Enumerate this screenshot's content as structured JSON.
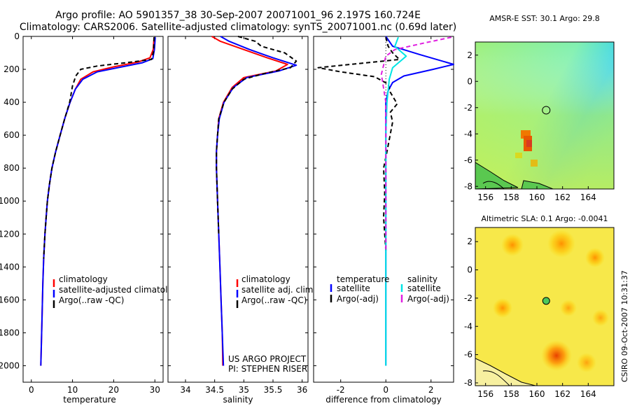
{
  "header": {
    "line1": "Argo profile: AO 5901357_38 30-Sep-2007 20071001_96 2.197S 160.724E",
    "line2": "Climatology: CARS2006. Satellite-adjusted climatology: synTS_20071001.nc (0.69d later)"
  },
  "colors": {
    "climatology": "#ff0000",
    "satellite": "#0000ff",
    "argo": "#000000",
    "sat_diff": "#00e5e5",
    "argo_diff": "#e020e0"
  },
  "chart_data": [
    {
      "type": "line",
      "xlabel": "temperature",
      "xlim": [
        -2,
        32
      ],
      "ylim": [
        2100,
        0
      ],
      "xticks": [
        "0",
        "10",
        "20",
        "30"
      ],
      "yticks": [
        "0",
        "200",
        "400",
        "600",
        "800",
        "1000",
        "1200",
        "1400",
        "1600",
        "1800",
        "2000"
      ],
      "legend": [
        "climatology",
        "satellite-adjusted climatology",
        "Argo(..raw -QC)"
      ],
      "series": [
        {
          "name": "climatology",
          "style": "red",
          "points": [
            [
              29.8,
              5
            ],
            [
              29.6,
              80
            ],
            [
              28.8,
              130
            ],
            [
              26,
              155
            ],
            [
              20,
              185
            ],
            [
              15,
              215
            ],
            [
              12,
              260
            ],
            [
              10.7,
              320
            ],
            [
              9.4,
              400
            ],
            [
              8.1,
              500
            ],
            [
              7.0,
              600
            ],
            [
              5.9,
              700
            ],
            [
              5.0,
              800
            ],
            [
              4.4,
              900
            ],
            [
              3.9,
              1000
            ],
            [
              3.6,
              1100
            ],
            [
              3.3,
              1200
            ],
            [
              3.0,
              1350
            ],
            [
              2.8,
              1500
            ],
            [
              2.6,
              1700
            ],
            [
              2.4,
              1900
            ],
            [
              2.3,
              2000
            ]
          ]
        },
        {
          "name": "satellite-adjusted climatology",
          "style": "blue",
          "points": [
            [
              30.1,
              5
            ],
            [
              29.9,
              80
            ],
            [
              29.5,
              135
            ],
            [
              27,
              160
            ],
            [
              22,
              185
            ],
            [
              16,
              215
            ],
            [
              12.5,
              260
            ],
            [
              10.7,
              320
            ],
            [
              9.4,
              400
            ],
            [
              8.1,
              500
            ],
            [
              7.0,
              600
            ],
            [
              5.9,
              700
            ],
            [
              5.0,
              800
            ],
            [
              4.4,
              900
            ],
            [
              3.9,
              1000
            ],
            [
              3.6,
              1100
            ],
            [
              3.3,
              1200
            ],
            [
              3.0,
              1350
            ],
            [
              2.8,
              1500
            ],
            [
              2.6,
              1700
            ],
            [
              2.4,
              1900
            ],
            [
              2.3,
              2000
            ]
          ]
        },
        {
          "name": "Argo(..raw -QC)",
          "style": "black-dash",
          "points": [
            [
              29.8,
              5
            ],
            [
              29.7,
              90
            ],
            [
              29.2,
              140
            ],
            [
              23,
              160
            ],
            [
              16,
              180
            ],
            [
              12,
              200
            ],
            [
              10.8,
              240
            ],
            [
              10.0,
              300
            ],
            [
              9.3,
              400
            ],
            [
              8.1,
              500
            ],
            [
              7.0,
              600
            ],
            [
              5.9,
              700
            ],
            [
              5.0,
              800
            ],
            [
              4.4,
              900
            ],
            [
              3.9,
              1000
            ],
            [
              3.6,
              1100
            ],
            [
              3.3,
              1200
            ],
            [
              3.0,
              1350
            ]
          ]
        }
      ]
    },
    {
      "type": "line",
      "xlabel": "salinity",
      "xlim": [
        33.7,
        36.1
      ],
      "ylim": [
        2100,
        0
      ],
      "xticks": [
        "34",
        "34.5",
        "35",
        "35.5",
        "36"
      ],
      "legend": [
        "climatology",
        "satellite adj. clim.",
        "Argo(..raw -QC)"
      ],
      "annotation": [
        "US ARGO PROJECT",
        "PI: STEPHEN RISER"
      ],
      "series": [
        {
          "name": "climatology",
          "style": "red",
          "points": [
            [
              34.45,
              0
            ],
            [
              34.6,
              30
            ],
            [
              35.0,
              80
            ],
            [
              35.4,
              130
            ],
            [
              35.75,
              170
            ],
            [
              35.55,
              210
            ],
            [
              35.0,
              250
            ],
            [
              34.8,
              310
            ],
            [
              34.65,
              400
            ],
            [
              34.57,
              500
            ],
            [
              34.55,
              600
            ],
            [
              34.53,
              700
            ],
            [
              34.53,
              800
            ],
            [
              34.54,
              900
            ],
            [
              34.55,
              1000
            ],
            [
              34.57,
              1200
            ],
            [
              34.59,
              1400
            ],
            [
              34.61,
              1600
            ],
            [
              34.63,
              1800
            ],
            [
              34.64,
              2000
            ]
          ]
        },
        {
          "name": "satellite adj. clim.",
          "style": "blue",
          "points": [
            [
              34.6,
              0
            ],
            [
              34.75,
              30
            ],
            [
              35.1,
              80
            ],
            [
              35.5,
              130
            ],
            [
              35.9,
              175
            ],
            [
              35.6,
              210
            ],
            [
              35.05,
              250
            ],
            [
              34.82,
              310
            ],
            [
              34.66,
              400
            ],
            [
              34.58,
              500
            ],
            [
              34.55,
              600
            ],
            [
              34.53,
              700
            ],
            [
              34.53,
              800
            ],
            [
              34.54,
              900
            ],
            [
              34.55,
              1000
            ],
            [
              34.57,
              1200
            ],
            [
              34.59,
              1400
            ],
            [
              34.61,
              1600
            ],
            [
              34.63,
              1800
            ],
            [
              34.65,
              2000
            ]
          ]
        },
        {
          "name": "Argo(..raw -QC)",
          "style": "black-dash",
          "points": [
            [
              34.9,
              0
            ],
            [
              35.2,
              30
            ],
            [
              35.3,
              60
            ],
            [
              35.7,
              100
            ],
            [
              35.9,
              150
            ],
            [
              35.8,
              190
            ],
            [
              35.3,
              230
            ],
            [
              35.0,
              260
            ],
            [
              34.8,
              320
            ],
            [
              34.66,
              400
            ],
            [
              34.57,
              500
            ],
            [
              34.55,
              600
            ],
            [
              34.53,
              700
            ],
            [
              34.53,
              800
            ],
            [
              34.54,
              900
            ],
            [
              34.55,
              1000
            ],
            [
              34.57,
              1200
            ]
          ]
        }
      ]
    },
    {
      "type": "line",
      "xlabel": "difference from climatology",
      "xlim": [
        -3.2,
        3.0
      ],
      "ylim": [
        2100,
        0
      ],
      "xticks": [
        "-2",
        "0",
        "2"
      ],
      "legend_titles": [
        "temperature",
        "salinity"
      ],
      "legend_left": [
        "satellite",
        "Argo(-adj)"
      ],
      "legend_right": [
        "satellite",
        "Argo(-adj)"
      ],
      "series": [
        {
          "name": "temperature satellite",
          "style": "blue",
          "points": [
            [
              0,
              0
            ],
            [
              0.3,
              60
            ],
            [
              1.5,
              110
            ],
            [
              3.0,
              170
            ],
            [
              2.1,
              200
            ],
            [
              0.8,
              240
            ],
            [
              0.3,
              280
            ],
            [
              0.1,
              330
            ],
            [
              0,
              400
            ],
            [
              0,
              2000
            ]
          ]
        },
        {
          "name": "temperature Argo(-adj)",
          "style": "black-dash",
          "points": [
            [
              0,
              5
            ],
            [
              0.1,
              60
            ],
            [
              0.3,
              100
            ],
            [
              0.6,
              140
            ],
            [
              -3.0,
              190
            ],
            [
              -2.0,
              215
            ],
            [
              -0.5,
              245
            ],
            [
              0.1,
              290
            ],
            [
              0.2,
              340
            ],
            [
              0.5,
              410
            ],
            [
              0.2,
              460
            ],
            [
              0.3,
              520
            ],
            [
              0.05,
              700
            ],
            [
              -0.1,
              800
            ],
            [
              -0.05,
              950
            ],
            [
              -0.1,
              1100
            ],
            [
              0,
              1300
            ]
          ]
        },
        {
          "name": "salinity satellite",
          "style": "cyan",
          "points": [
            [
              0.55,
              5
            ],
            [
              0.4,
              60
            ],
            [
              0.9,
              120
            ],
            [
              0.3,
              190
            ],
            [
              0.15,
              260
            ],
            [
              0.05,
              400
            ],
            [
              0,
              600
            ],
            [
              0,
              2000
            ]
          ]
        },
        {
          "name": "salinity Argo(-adj)",
          "style": "magenta-dash",
          "points": [
            [
              2.9,
              5
            ],
            [
              1.7,
              40
            ],
            [
              0.4,
              80
            ],
            [
              0,
              120
            ],
            [
              -0.2,
              230
            ],
            [
              0,
              400
            ],
            [
              0,
              600
            ],
            [
              0,
              1300
            ]
          ]
        }
      ]
    }
  ],
  "maps": [
    {
      "title": "AMSR-E SST: 30.1 Argo: 29.8",
      "xticks": [
        "156",
        "158",
        "160",
        "162",
        "164"
      ],
      "yticks": [
        "2",
        "0",
        "-2",
        "-4",
        "-6",
        "-8"
      ],
      "marker": {
        "lon": 160.724,
        "lat": -2.197
      }
    },
    {
      "title": "Altimetric SLA: 0.1 Argo: -0.0041",
      "xticks": [
        "156",
        "158",
        "160",
        "162",
        "164"
      ],
      "yticks": [
        "2",
        "0",
        "-2",
        "-4",
        "-6",
        "-8"
      ],
      "marker": {
        "lon": 160.724,
        "lat": -2.197
      }
    }
  ],
  "side_text": "CSIRO 09-Oct-2007 10:31:37"
}
